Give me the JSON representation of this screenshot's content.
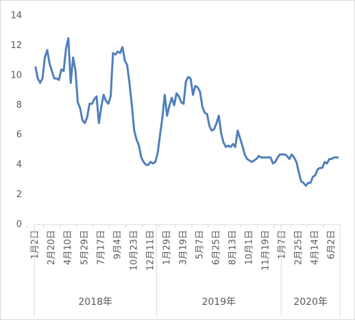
{
  "chart_data": {
    "type": "line",
    "categories": [
      "1月2日",
      null,
      null,
      null,
      null,
      null,
      null,
      "2月20日",
      null,
      null,
      null,
      null,
      null,
      null,
      "4月10日",
      null,
      null,
      null,
      null,
      null,
      null,
      "5月29日",
      null,
      null,
      null,
      null,
      null,
      null,
      "7月17日",
      null,
      null,
      null,
      null,
      null,
      null,
      "9月4日",
      null,
      null,
      null,
      null,
      null,
      null,
      "10月23日",
      null,
      null,
      null,
      null,
      null,
      null,
      "12月11日",
      null,
      null,
      null,
      null,
      null,
      null,
      "1月29日",
      null,
      null,
      null,
      null,
      null,
      null,
      "3月19日",
      null,
      null,
      null,
      null,
      null,
      null,
      "5月7日",
      null,
      null,
      null,
      null,
      null,
      null,
      "6月25日",
      null,
      null,
      null,
      null,
      null,
      null,
      "8月13日",
      null,
      null,
      null,
      null,
      null,
      null,
      "10月1日",
      null,
      null,
      null,
      null,
      null,
      null,
      "11月19日",
      null,
      null,
      null,
      null,
      null,
      null,
      "1月7日",
      null,
      null,
      null,
      null,
      null,
      null,
      "2月25日",
      null,
      null,
      null,
      null,
      null,
      null,
      "4月14日",
      null,
      null,
      null,
      null,
      null,
      null,
      "6月2日",
      null,
      null,
      null
    ],
    "x_groups": [
      {
        "label": "2018年",
        "count": 52
      },
      {
        "label": "2019年",
        "count": 53
      },
      {
        "label": "2020年",
        "count": 25
      }
    ],
    "series": [
      {
        "color": "#4f7fbc",
        "values": [
          10.6,
          9.8,
          9.5,
          9.8,
          11.2,
          11.7,
          10.8,
          10.3,
          9.8,
          9.8,
          9.7,
          10.4,
          10.3,
          11.8,
          12.5,
          9.5,
          11.2,
          10.4,
          8.2,
          7.8,
          7.0,
          6.8,
          7.2,
          8.1,
          8.1,
          8.4,
          8.6,
          6.8,
          7.9,
          8.7,
          8.3,
          8.1,
          8.6,
          11.5,
          11.4,
          11.6,
          11.5,
          11.9,
          11.0,
          10.7,
          9.5,
          8.0,
          6.3,
          5.7,
          5.3,
          4.5,
          4.2,
          4.0,
          4.0,
          4.2,
          4.1,
          4.2,
          4.8,
          6.0,
          7.2,
          8.7,
          7.3,
          8.0,
          8.5,
          8.0,
          8.8,
          8.6,
          8.2,
          8.1,
          9.6,
          9.9,
          9.8,
          8.7,
          9.3,
          9.2,
          8.9,
          7.9,
          7.5,
          7.4,
          6.6,
          6.3,
          6.4,
          6.8,
          7.3,
          6.1,
          5.5,
          5.2,
          5.3,
          5.2,
          5.4,
          5.2,
          6.3,
          5.8,
          5.3,
          4.7,
          4.4,
          4.3,
          4.2,
          4.3,
          4.4,
          4.6,
          4.5,
          4.5,
          4.5,
          4.5,
          4.5,
          4.1,
          4.2,
          4.5,
          4.7,
          4.7,
          4.7,
          4.6,
          4.4,
          4.7,
          4.5,
          4.2,
          3.5,
          2.9,
          2.8,
          2.6,
          2.8,
          2.8,
          3.2,
          3.3,
          3.7,
          3.8,
          3.8,
          4.2,
          4.1,
          4.4,
          4.4,
          4.5,
          4.5,
          4.5
        ]
      }
    ],
    "ylim": [
      0,
      14
    ],
    "yticks": [
      0,
      2,
      4,
      6,
      8,
      10,
      12,
      14
    ]
  }
}
